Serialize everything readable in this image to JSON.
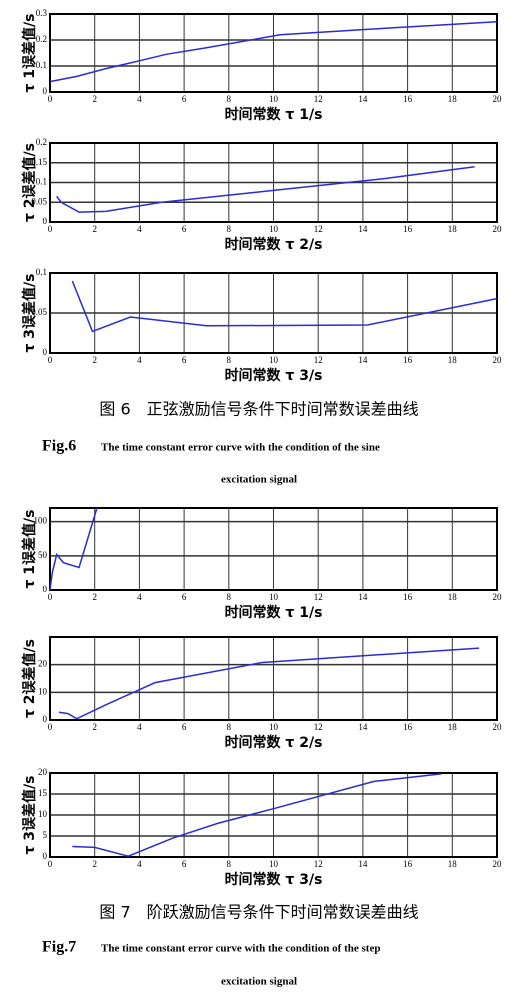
{
  "chart_data": [
    {
      "type": "line",
      "xlabel": "时间常数 τ 1/s",
      "ylabel": "τ 1误差值/s",
      "xlim": [
        0,
        20
      ],
      "xticks": [
        0,
        2,
        4,
        6,
        8,
        10,
        12,
        14,
        16,
        18,
        20
      ],
      "ylim": [
        0,
        0.3
      ],
      "yticks": [
        0,
        0.1,
        0.2,
        0.3
      ],
      "grid": true,
      "series": [
        {
          "color": "#2a2ad8",
          "x": [
            0,
            1.2,
            2.5,
            4,
            5.2,
            7,
            10.3,
            14,
            20
          ],
          "values": [
            0.04,
            0.06,
            0.09,
            0.12,
            0.145,
            0.17,
            0.22,
            0.24,
            0.27
          ]
        }
      ]
    },
    {
      "type": "line",
      "xlabel": "时间常数 τ 2/s",
      "ylabel": "τ 2误差值/s",
      "xlim": [
        0,
        20
      ],
      "xticks": [
        0,
        2,
        4,
        6,
        8,
        10,
        12,
        14,
        16,
        18,
        20
      ],
      "ylim": [
        0,
        0.2
      ],
      "yticks": [
        0,
        0.05,
        0.1,
        0.15,
        0.2
      ],
      "grid": true,
      "series": [
        {
          "color": "#2a2ad8",
          "x": [
            0.3,
            0.5,
            1.3,
            2.5,
            5,
            10,
            15,
            19
          ],
          "values": [
            0.065,
            0.05,
            0.025,
            0.027,
            0.05,
            0.08,
            0.11,
            0.14
          ]
        }
      ]
    },
    {
      "type": "line",
      "xlabel": "时间常数 τ 3/s",
      "ylabel": "τ 3误差值/s",
      "xlim": [
        0,
        20
      ],
      "xticks": [
        0,
        2,
        4,
        6,
        8,
        10,
        12,
        14,
        16,
        18,
        20
      ],
      "ylim": [
        0,
        0.1
      ],
      "yticks": [
        0,
        0.05,
        0.1
      ],
      "grid": true,
      "series": [
        {
          "color": "#2a2ad8",
          "x": [
            1,
            1.9,
            3.6,
            7,
            14.2,
            20
          ],
          "values": [
            0.09,
            0.027,
            0.045,
            0.034,
            0.035,
            0.068
          ]
        }
      ]
    },
    {
      "type": "line",
      "xlabel": "时间常数 τ 1/s",
      "ylabel": "τ 1误差值/s",
      "xlim": [
        0,
        20
      ],
      "xticks": [
        0,
        2,
        4,
        6,
        8,
        10,
        12,
        14,
        16,
        18,
        20
      ],
      "ylim": [
        0,
        120
      ],
      "yticks": [
        0,
        50,
        100
      ],
      "grid": true,
      "series": [
        {
          "color": "#2a2ad8",
          "x": [
            0,
            0.1,
            0.3,
            0.6,
            1.3,
            2.1
          ],
          "values": [
            0,
            25,
            52,
            40,
            33,
            120
          ]
        }
      ]
    },
    {
      "type": "line",
      "xlabel": "时间常数 τ 2/s",
      "ylabel": "τ 2误差值/s",
      "xlim": [
        0,
        20
      ],
      "xticks": [
        0,
        2,
        4,
        6,
        8,
        10,
        12,
        14,
        16,
        18,
        20
      ],
      "ylim": [
        0,
        30
      ],
      "yticks": [
        0,
        10,
        20
      ],
      "grid": true,
      "series": [
        {
          "color": "#2a2ad8",
          "x": [
            0.4,
            0.8,
            1.2,
            2.5,
            4.7,
            9.5,
            19.2
          ],
          "values": [
            2.8,
            2.3,
            0.5,
            5.5,
            13.5,
            20.8,
            26
          ]
        }
      ]
    },
    {
      "type": "line",
      "xlabel": "时间常数 τ 3/s",
      "ylabel": "τ 3误差值/s",
      "xlim": [
        0,
        20
      ],
      "xticks": [
        0,
        2,
        4,
        6,
        8,
        10,
        12,
        14,
        16,
        18,
        20
      ],
      "ylim": [
        0,
        20
      ],
      "yticks": [
        0,
        5,
        10,
        15,
        20
      ],
      "grid": true,
      "series": [
        {
          "color": "#2a2ad8",
          "x": [
            1,
            2,
            3.5,
            5.5,
            7.5,
            10,
            14.5,
            17.5
          ],
          "values": [
            2.5,
            2.3,
            0.2,
            4.5,
            8,
            11.5,
            18,
            19.8
          ]
        }
      ]
    }
  ],
  "captions": [
    {
      "title": "图 6　正弦激励信号条件下时间常数误差曲线",
      "fig": "Fig.6",
      "lines": [
        "The time constant error curve with the condition of the sine",
        "excitation signal"
      ]
    },
    {
      "title": "图 7　阶跃激励信号条件下时间常数误差曲线",
      "fig": "Fig.7",
      "lines": [
        "The time constant error curve with the condition of the step",
        "excitation signal"
      ]
    }
  ]
}
